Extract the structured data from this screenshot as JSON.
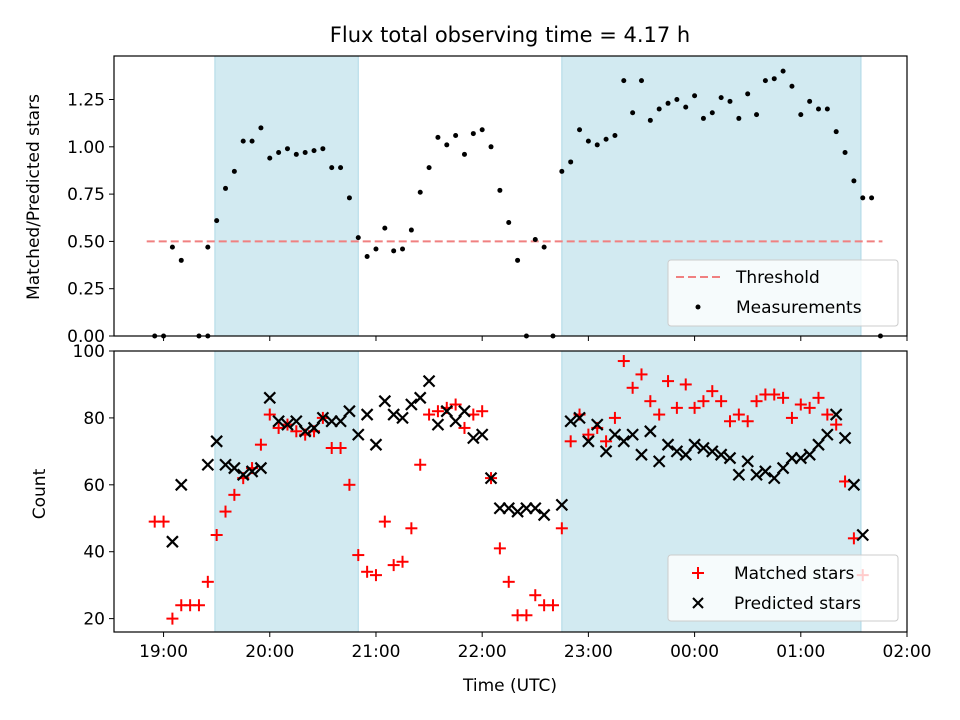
{
  "chart_data": [
    {
      "type": "scatter",
      "title": "Flux total observing time = 4.17 h",
      "ylabel": "Matched/Predicted stars",
      "ylim": [
        0,
        1.48
      ],
      "yticks": [
        "0.00",
        "0.25",
        "0.50",
        "0.75",
        "1.00",
        "1.25"
      ],
      "threshold": 0.5,
      "legend": {
        "placement": "bottom-right",
        "threshold_label": "Threshold",
        "measurements_label": "Measurements"
      },
      "colors": {
        "shade": "#add8e6",
        "threshold": "#f08080",
        "points": "#000000"
      },
      "shaded_intervals": [
        [
          "19:29",
          "20:50"
        ],
        [
          "22:45",
          "01:34"
        ]
      ],
      "series": [
        {
          "name": "Measurements",
          "points": [
            [
              "18:55",
              0.0
            ],
            [
              "19:00",
              0.0
            ],
            [
              "19:05",
              0.47
            ],
            [
              "19:10",
              0.4
            ],
            [
              "19:20",
              0.0
            ],
            [
              "19:25",
              0.0
            ],
            [
              "19:25",
              0.47
            ],
            [
              "19:30",
              0.61
            ],
            [
              "19:35",
              0.78
            ],
            [
              "19:40",
              0.87
            ],
            [
              "19:45",
              1.03
            ],
            [
              "19:50",
              1.03
            ],
            [
              "19:55",
              1.1
            ],
            [
              "20:00",
              0.94
            ],
            [
              "20:05",
              0.97
            ],
            [
              "20:10",
              0.99
            ],
            [
              "20:15",
              0.96
            ],
            [
              "20:20",
              0.97
            ],
            [
              "20:25",
              0.98
            ],
            [
              "20:30",
              0.99
            ],
            [
              "20:35",
              0.89
            ],
            [
              "20:40",
              0.89
            ],
            [
              "20:45",
              0.73
            ],
            [
              "20:50",
              0.52
            ],
            [
              "20:55",
              0.42
            ],
            [
              "21:00",
              0.46
            ],
            [
              "21:05",
              0.57
            ],
            [
              "21:10",
              0.45
            ],
            [
              "21:15",
              0.46
            ],
            [
              "21:20",
              0.56
            ],
            [
              "21:25",
              0.76
            ],
            [
              "21:30",
              0.89
            ],
            [
              "21:35",
              1.05
            ],
            [
              "21:40",
              1.01
            ],
            [
              "21:45",
              1.06
            ],
            [
              "21:50",
              0.96
            ],
            [
              "21:55",
              1.07
            ],
            [
              "22:00",
              1.09
            ],
            [
              "22:05",
              1.0
            ],
            [
              "22:10",
              0.77
            ],
            [
              "22:15",
              0.6
            ],
            [
              "22:20",
              0.4
            ],
            [
              "22:25",
              0.0
            ],
            [
              "22:30",
              0.51
            ],
            [
              "22:35",
              0.47
            ],
            [
              "22:40",
              0.0
            ],
            [
              "22:45",
              0.87
            ],
            [
              "22:50",
              0.92
            ],
            [
              "22:55",
              1.09
            ],
            [
              "23:00",
              1.03
            ],
            [
              "23:05",
              1.01
            ],
            [
              "23:10",
              1.04
            ],
            [
              "23:15",
              1.06
            ],
            [
              "23:20",
              1.35
            ],
            [
              "23:25",
              1.18
            ],
            [
              "23:30",
              1.35
            ],
            [
              "23:35",
              1.14
            ],
            [
              "23:40",
              1.2
            ],
            [
              "23:45",
              1.23
            ],
            [
              "23:50",
              1.25
            ],
            [
              "23:55",
              1.21
            ],
            [
              "00:00",
              1.27
            ],
            [
              "00:05",
              1.15
            ],
            [
              "00:10",
              1.18
            ],
            [
              "00:15",
              1.26
            ],
            [
              "00:20",
              1.24
            ],
            [
              "00:25",
              1.15
            ],
            [
              "00:30",
              1.28
            ],
            [
              "00:35",
              1.17
            ],
            [
              "00:40",
              1.35
            ],
            [
              "00:45",
              1.36
            ],
            [
              "00:50",
              1.4
            ],
            [
              "00:55",
              1.32
            ],
            [
              "01:00",
              1.17
            ],
            [
              "01:05",
              1.24
            ],
            [
              "01:10",
              1.2
            ],
            [
              "01:15",
              1.2
            ],
            [
              "01:20",
              1.08
            ],
            [
              "01:25",
              0.97
            ],
            [
              "01:30",
              0.82
            ],
            [
              "01:35",
              0.73
            ],
            [
              "01:40",
              0.73
            ],
            [
              "01:45",
              0.0
            ]
          ]
        }
      ]
    },
    {
      "type": "scatter",
      "ylabel": "Count",
      "xlabel": "Time (UTC)",
      "xlim": [
        "18:32",
        "02:00"
      ],
      "xticks": [
        "19:00",
        "20:00",
        "21:00",
        "22:00",
        "23:00",
        "00:00",
        "01:00",
        "02:00"
      ],
      "ylim": [
        16,
        100
      ],
      "yticks": [
        "20",
        "40",
        "60",
        "80",
        "100"
      ],
      "legend": {
        "placement": "bottom-right"
      },
      "colors": {
        "matched": "#ff0000",
        "predicted": "#000000"
      },
      "series": [
        {
          "name": "Matched stars",
          "points": [
            [
              "18:55",
              49
            ],
            [
              "19:00",
              49
            ],
            [
              "19:05",
              20
            ],
            [
              "19:10",
              24
            ],
            [
              "19:15",
              24
            ],
            [
              "19:20",
              24
            ],
            [
              "19:25",
              31
            ],
            [
              "19:30",
              45
            ],
            [
              "19:35",
              52
            ],
            [
              "19:40",
              57
            ],
            [
              "19:45",
              62
            ],
            [
              "19:50",
              65
            ],
            [
              "19:55",
              72
            ],
            [
              "20:00",
              81
            ],
            [
              "20:05",
              77
            ],
            [
              "20:10",
              78
            ],
            [
              "20:15",
              76
            ],
            [
              "20:20",
              75
            ],
            [
              "20:25",
              76
            ],
            [
              "20:30",
              80
            ],
            [
              "20:35",
              71
            ],
            [
              "20:40",
              71
            ],
            [
              "20:45",
              60
            ],
            [
              "20:50",
              39
            ],
            [
              "20:55",
              34
            ],
            [
              "21:00",
              33
            ],
            [
              "21:05",
              49
            ],
            [
              "21:10",
              36
            ],
            [
              "21:15",
              37
            ],
            [
              "21:20",
              47
            ],
            [
              "21:25",
              66
            ],
            [
              "21:30",
              81
            ],
            [
              "21:35",
              82
            ],
            [
              "21:40",
              83
            ],
            [
              "21:45",
              84
            ],
            [
              "21:50",
              77
            ],
            [
              "21:55",
              81
            ],
            [
              "22:00",
              82
            ],
            [
              "22:05",
              62
            ],
            [
              "22:10",
              41
            ],
            [
              "22:15",
              31
            ],
            [
              "22:20",
              21
            ],
            [
              "22:25",
              21
            ],
            [
              "22:30",
              27
            ],
            [
              "22:35",
              24
            ],
            [
              "22:40",
              24
            ],
            [
              "22:45",
              47
            ],
            [
              "22:50",
              73
            ],
            [
              "22:55",
              81
            ],
            [
              "23:00",
              75
            ],
            [
              "23:05",
              77
            ],
            [
              "23:10",
              73
            ],
            [
              "23:15",
              80
            ],
            [
              "23:20",
              97
            ],
            [
              "23:25",
              89
            ],
            [
              "23:30",
              93
            ],
            [
              "23:35",
              85
            ],
            [
              "23:40",
              81
            ],
            [
              "23:45",
              91
            ],
            [
              "23:50",
              83
            ],
            [
              "23:55",
              90
            ],
            [
              "00:00",
              83
            ],
            [
              "00:05",
              85
            ],
            [
              "00:10",
              88
            ],
            [
              "00:15",
              85
            ],
            [
              "00:20",
              79
            ],
            [
              "00:25",
              81
            ],
            [
              "00:30",
              79
            ],
            [
              "00:35",
              85
            ],
            [
              "00:40",
              87
            ],
            [
              "00:45",
              87
            ],
            [
              "00:50",
              86
            ],
            [
              "00:55",
              80
            ],
            [
              "01:00",
              84
            ],
            [
              "01:05",
              83
            ],
            [
              "01:10",
              86
            ],
            [
              "01:15",
              81
            ],
            [
              "01:20",
              78
            ],
            [
              "01:25",
              61
            ],
            [
              "01:30",
              44
            ],
            [
              "01:35",
              33
            ]
          ]
        },
        {
          "name": "Predicted stars",
          "points": [
            [
              "19:05",
              43
            ],
            [
              "19:10",
              60
            ],
            [
              "19:25",
              66
            ],
            [
              "19:30",
              73
            ],
            [
              "19:35",
              66
            ],
            [
              "19:40",
              65
            ],
            [
              "19:45",
              63
            ],
            [
              "19:50",
              64
            ],
            [
              "19:55",
              65
            ],
            [
              "20:00",
              86
            ],
            [
              "20:05",
              79
            ],
            [
              "20:10",
              78
            ],
            [
              "20:15",
              79
            ],
            [
              "20:20",
              76
            ],
            [
              "20:25",
              77
            ],
            [
              "20:30",
              80
            ],
            [
              "20:35",
              79
            ],
            [
              "20:40",
              79
            ],
            [
              "20:45",
              82
            ],
            [
              "20:50",
              75
            ],
            [
              "20:55",
              81
            ],
            [
              "21:00",
              72
            ],
            [
              "21:05",
              85
            ],
            [
              "21:10",
              81
            ],
            [
              "21:15",
              80
            ],
            [
              "21:20",
              84
            ],
            [
              "21:25",
              86
            ],
            [
              "21:30",
              91
            ],
            [
              "21:35",
              78
            ],
            [
              "21:40",
              82
            ],
            [
              "21:45",
              79
            ],
            [
              "21:50",
              82
            ],
            [
              "21:55",
              74
            ],
            [
              "22:00",
              75
            ],
            [
              "22:05",
              62
            ],
            [
              "22:10",
              53
            ],
            [
              "22:15",
              53
            ],
            [
              "22:20",
              52
            ],
            [
              "22:25",
              53
            ],
            [
              "22:30",
              53
            ],
            [
              "22:35",
              51
            ],
            [
              "22:45",
              54
            ],
            [
              "22:50",
              79
            ],
            [
              "22:55",
              80
            ],
            [
              "23:00",
              73
            ],
            [
              "23:05",
              78
            ],
            [
              "23:10",
              70
            ],
            [
              "23:15",
              75
            ],
            [
              "23:20",
              73
            ],
            [
              "23:25",
              75
            ],
            [
              "23:30",
              69
            ],
            [
              "23:35",
              76
            ],
            [
              "23:40",
              67
            ],
            [
              "23:45",
              72
            ],
            [
              "23:50",
              70
            ],
            [
              "23:55",
              69
            ],
            [
              "00:00",
              72
            ],
            [
              "00:05",
              71
            ],
            [
              "00:10",
              70
            ],
            [
              "00:15",
              69
            ],
            [
              "00:20",
              68
            ],
            [
              "00:25",
              63
            ],
            [
              "00:30",
              67
            ],
            [
              "00:35",
              63
            ],
            [
              "00:40",
              64
            ],
            [
              "00:45",
              62
            ],
            [
              "00:50",
              65
            ],
            [
              "00:55",
              68
            ],
            [
              "01:00",
              68
            ],
            [
              "01:05",
              69
            ],
            [
              "01:10",
              72
            ],
            [
              "01:15",
              75
            ],
            [
              "01:20",
              81
            ],
            [
              "01:25",
              74
            ],
            [
              "01:30",
              60
            ],
            [
              "01:35",
              45
            ]
          ]
        }
      ]
    }
  ]
}
